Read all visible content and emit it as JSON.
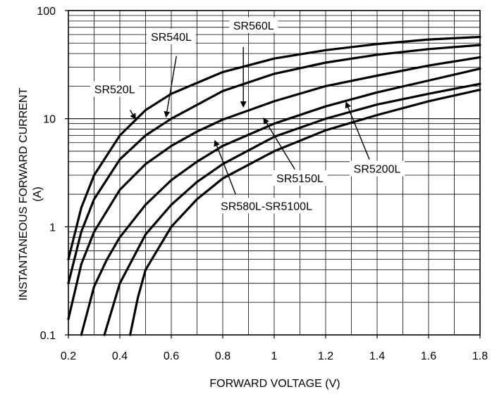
{
  "chart_data": {
    "type": "line",
    "title": "",
    "xlabel": "FORWARD VOLTAGE (V)",
    "ylabel_lines": [
      "INSTANTANEOUS FORWARD CURRENT",
      "(A)"
    ],
    "xlim": [
      0.2,
      1.8
    ],
    "ylim": [
      0.1,
      100
    ],
    "yscale": "log",
    "grid": true,
    "x_ticks": [
      0.2,
      0.4,
      0.6,
      0.8,
      1.0,
      1.2,
      1.4,
      1.6,
      1.8
    ],
    "x_tick_labels": [
      "0.2",
      "0.4",
      "0.6",
      "0.8",
      "1",
      "1.2",
      "1.4",
      "1.6",
      "1.8"
    ],
    "y_ticks": [
      0.1,
      1,
      10,
      100
    ],
    "y_tick_labels": [
      "0.1",
      "1",
      "10",
      "100"
    ],
    "series": [
      {
        "name": "SR520L",
        "x": [
          0.2,
          0.25,
          0.3,
          0.4,
          0.5,
          0.6,
          0.8,
          1.0,
          1.2,
          1.4,
          1.6,
          1.8
        ],
        "y": [
          0.5,
          1.5,
          3.0,
          7.0,
          12,
          17,
          27,
          36,
          43,
          49,
          54,
          57
        ]
      },
      {
        "name": "SR540L",
        "x": [
          0.2,
          0.25,
          0.3,
          0.4,
          0.5,
          0.6,
          0.8,
          1.0,
          1.2,
          1.4,
          1.6,
          1.8
        ],
        "y": [
          0.3,
          0.9,
          1.8,
          4.2,
          7.0,
          10,
          18,
          26,
          33,
          39,
          44,
          48
        ]
      },
      {
        "name": "SR560L",
        "x": [
          0.2,
          0.25,
          0.3,
          0.4,
          0.5,
          0.6,
          0.7,
          0.8,
          1.0,
          1.2,
          1.4,
          1.6,
          1.8
        ],
        "y": [
          0.14,
          0.45,
          0.9,
          2.2,
          3.8,
          5.6,
          7.6,
          9.8,
          14.5,
          20,
          25,
          31,
          37
        ]
      },
      {
        "name": "SR580L-SR5100L",
        "x": [
          0.25,
          0.3,
          0.35,
          0.4,
          0.5,
          0.6,
          0.7,
          0.8,
          1.0,
          1.2,
          1.4,
          1.6,
          1.8
        ],
        "y": [
          0.1,
          0.28,
          0.5,
          0.8,
          1.6,
          2.7,
          4.0,
          5.6,
          9.0,
          13,
          17.5,
          22.5,
          29
        ]
      },
      {
        "name": "SR5150L",
        "x": [
          0.34,
          0.4,
          0.5,
          0.6,
          0.7,
          0.8,
          1.0,
          1.2,
          1.4,
          1.6,
          1.8
        ],
        "y": [
          0.1,
          0.3,
          0.85,
          1.6,
          2.6,
          3.8,
          6.8,
          10,
          13.5,
          17,
          21
        ]
      },
      {
        "name": "SR5200L",
        "x": [
          0.44,
          0.47,
          0.5,
          0.6,
          0.7,
          0.8,
          1.0,
          1.2,
          1.4,
          1.6,
          1.8
        ],
        "y": [
          0.1,
          0.22,
          0.4,
          1.0,
          1.8,
          2.8,
          5.0,
          7.8,
          10.8,
          14.5,
          18.5
        ]
      }
    ],
    "annotations": [
      {
        "text": "SR520L",
        "label_x": 0.38,
        "label_y": 18,
        "arrow_from": [
          0.44,
          12
        ],
        "arrow_to": [
          0.46,
          10
        ]
      },
      {
        "text": "SR540L",
        "label_x": 0.6,
        "label_y": 55,
        "arrow_from": [
          0.62,
          38
        ],
        "arrow_to": [
          0.58,
          10.5
        ]
      },
      {
        "text": "SR560L",
        "label_x": 0.92,
        "label_y": 70,
        "arrow_from": [
          0.88,
          46
        ],
        "arrow_to": [
          0.88,
          13
        ]
      },
      {
        "text": "SR580L-SR5100L",
        "label_x": 0.97,
        "label_y": 1.5,
        "arrow_from": [
          0.85,
          2.0
        ],
        "arrow_to": [
          0.77,
          6.2
        ]
      },
      {
        "text": "SR5150L",
        "label_x": 1.1,
        "label_y": 2.7,
        "arrow_from": [
          1.08,
          3.4
        ],
        "arrow_to": [
          0.96,
          10
        ]
      },
      {
        "text": "SR5200L",
        "label_x": 1.4,
        "label_y": 3.3,
        "arrow_from": [
          1.37,
          4.2
        ],
        "arrow_to": [
          1.28,
          14
        ]
      }
    ]
  }
}
